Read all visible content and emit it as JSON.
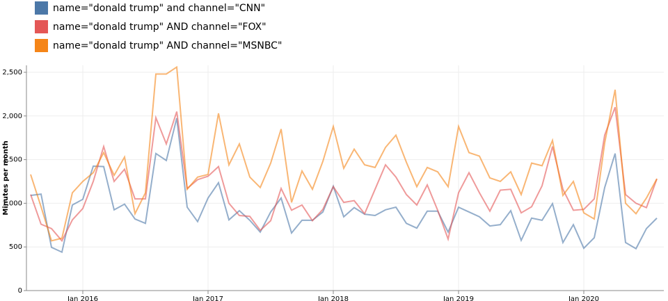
{
  "chart_data": {
    "type": "line",
    "y_label": "Minutes per month",
    "x": [
      "2015-08",
      "2015-09",
      "2015-10",
      "2015-11",
      "2015-12",
      "2016-01",
      "2016-02",
      "2016-03",
      "2016-04",
      "2016-05",
      "2016-06",
      "2016-07",
      "2016-08",
      "2016-09",
      "2016-10",
      "2016-11",
      "2016-12",
      "2017-01",
      "2017-02",
      "2017-03",
      "2017-04",
      "2017-05",
      "2017-06",
      "2017-07",
      "2017-08",
      "2017-09",
      "2017-10",
      "2017-11",
      "2017-12",
      "2018-01",
      "2018-02",
      "2018-03",
      "2018-04",
      "2018-05",
      "2018-06",
      "2018-07",
      "2018-08",
      "2018-09",
      "2018-10",
      "2018-11",
      "2018-12",
      "2019-01",
      "2019-02",
      "2019-03",
      "2019-04",
      "2019-05",
      "2019-06",
      "2019-07",
      "2019-08",
      "2019-09",
      "2019-10",
      "2019-11",
      "2019-12",
      "2020-01",
      "2020-02",
      "2020-03",
      "2020-04",
      "2020-05",
      "2020-06",
      "2020-07",
      "2020-08"
    ],
    "series": [
      {
        "name": "name=\"donald trump\" and channel=\"CNN\"",
        "color": "#4c78a8",
        "values": [
          1090,
          1105,
          495,
          440,
          980,
          1045,
          1425,
          1420,
          925,
          990,
          820,
          770,
          1570,
          1490,
          1975,
          955,
          790,
          1060,
          1235,
          810,
          915,
          805,
          670,
          900,
          1060,
          660,
          805,
          805,
          900,
          1195,
          845,
          950,
          875,
          860,
          925,
          955,
          770,
          715,
          910,
          910,
          670,
          955,
          900,
          845,
          740,
          755,
          915,
          575,
          830,
          805,
          995,
          550,
          755,
          485,
          605,
          1180,
          1570,
          550,
          480,
          710,
          830
        ]
      },
      {
        "name": "name=\"donald trump\" AND channel=\"FOX\"",
        "color": "#e45756",
        "values": [
          1100,
          760,
          710,
          570,
          810,
          940,
          1250,
          1650,
          1250,
          1390,
          1050,
          1050,
          1980,
          1680,
          2050,
          1170,
          1270,
          1310,
          1420,
          1000,
          860,
          850,
          690,
          800,
          1170,
          920,
          980,
          800,
          930,
          1190,
          1010,
          1030,
          880,
          1160,
          1440,
          1300,
          1100,
          980,
          1210,
          920,
          590,
          1120,
          1350,
          1120,
          910,
          1150,
          1160,
          890,
          960,
          1200,
          1650,
          1160,
          920,
          930,
          1050,
          1780,
          2100,
          1100,
          1000,
          950,
          1280
        ]
      },
      {
        "name": "name=\"donald trump\" AND channel=\"MSNBC\"",
        "color": "#f58518",
        "values": [
          1330,
          960,
          570,
          600,
          1120,
          1250,
          1350,
          1580,
          1320,
          1530,
          880,
          1120,
          2480,
          2480,
          2560,
          1160,
          1300,
          1330,
          2030,
          1440,
          1680,
          1300,
          1180,
          1460,
          1850,
          1010,
          1370,
          1160,
          1480,
          1880,
          1400,
          1620,
          1440,
          1410,
          1640,
          1780,
          1470,
          1190,
          1410,
          1360,
          1190,
          1880,
          1580,
          1540,
          1290,
          1250,
          1360,
          1100,
          1460,
          1430,
          1720,
          1090,
          1250,
          890,
          820,
          1690,
          2300,
          1000,
          880,
          1060,
          1280
        ]
      }
    ],
    "xlim": [
      "2015-08",
      "2020-08"
    ],
    "xticks": [
      {
        "value": "2016-01",
        "label": "Jan 2016"
      },
      {
        "value": "2017-01",
        "label": "Jan 2017"
      },
      {
        "value": "2018-01",
        "label": "Jan 2018"
      },
      {
        "value": "2019-01",
        "label": "Jan 2019"
      },
      {
        "value": "2020-01",
        "label": "Jan 2020"
      }
    ],
    "ylim": [
      0,
      2500
    ],
    "yticks": [
      0,
      500,
      {
        "value": 1000,
        "label": "1,000"
      },
      {
        "value": 1500,
        "label": "1,500"
      },
      {
        "value": 2000,
        "label": "2,000"
      },
      {
        "value": 2500,
        "label": "2,500"
      }
    ],
    "grid": true,
    "legend": "top-left"
  }
}
